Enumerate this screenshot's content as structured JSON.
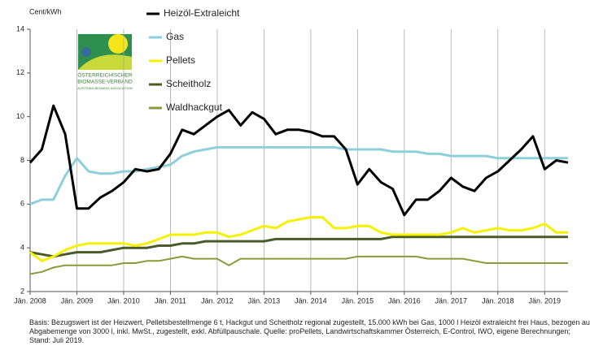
{
  "chart_data": {
    "type": "line",
    "y_label": "Cent/kWh",
    "categories": [
      "Jän. 2008",
      null,
      null,
      null,
      "Jän. 2009",
      null,
      null,
      null,
      "Jän. 2010",
      null,
      null,
      null,
      "Jän. 2011",
      null,
      null,
      null,
      "Jän. 2012",
      null,
      null,
      null,
      "Jän. 2013",
      null,
      null,
      null,
      "Jän. 2014",
      null,
      null,
      null,
      "Jän. 2015",
      null,
      null,
      null,
      "Jän. 2016",
      null,
      null,
      null,
      "Jän. 2017",
      null,
      null,
      null,
      "Jän. 2018",
      null,
      null,
      null,
      "Jän. 2019",
      null,
      null
    ],
    "ylim": [
      2,
      14
    ],
    "yticks": [
      2,
      4,
      6,
      8,
      10,
      12,
      14
    ],
    "grid": "x",
    "series": [
      {
        "name": "Heizöl-Extraleicht",
        "color": "#000000",
        "values": [
          7.9,
          8.5,
          10.5,
          9.2,
          5.8,
          5.8,
          6.3,
          6.6,
          7.0,
          7.6,
          7.5,
          7.6,
          8.3,
          9.4,
          9.2,
          9.6,
          10.0,
          10.3,
          9.6,
          10.2,
          9.9,
          9.2,
          9.4,
          9.4,
          9.3,
          9.1,
          9.1,
          8.5,
          6.9,
          7.6,
          7.0,
          6.7,
          5.5,
          6.2,
          6.2,
          6.6,
          7.2,
          6.8,
          6.6,
          7.2,
          7.5,
          8.0,
          8.5,
          9.1,
          7.6,
          8.0,
          7.9
        ]
      },
      {
        "name": "Gas",
        "color": "#8ecfdc",
        "values": [
          6.0,
          6.2,
          6.2,
          7.3,
          8.1,
          7.5,
          7.4,
          7.4,
          7.5,
          7.5,
          7.6,
          7.7,
          7.8,
          8.2,
          8.4,
          8.5,
          8.6,
          8.6,
          8.6,
          8.6,
          8.6,
          8.6,
          8.6,
          8.6,
          8.6,
          8.6,
          8.6,
          8.5,
          8.5,
          8.5,
          8.5,
          8.4,
          8.4,
          8.4,
          8.3,
          8.3,
          8.2,
          8.2,
          8.2,
          8.2,
          8.1,
          8.1,
          8.1,
          8.1,
          8.1,
          8.1,
          8.1
        ]
      },
      {
        "name": "Pellets",
        "color": "#f5f200",
        "values": [
          3.8,
          3.4,
          3.6,
          3.9,
          4.1,
          4.2,
          4.2,
          4.2,
          4.2,
          4.1,
          4.2,
          4.4,
          4.6,
          4.6,
          4.6,
          4.7,
          4.7,
          4.5,
          4.6,
          4.8,
          5.0,
          4.9,
          5.2,
          5.3,
          5.4,
          5.4,
          4.9,
          4.9,
          5.0,
          5.0,
          4.7,
          4.6,
          4.6,
          4.6,
          4.6,
          4.6,
          4.7,
          4.9,
          4.7,
          4.8,
          4.9,
          4.8,
          4.8,
          4.9,
          5.1,
          4.7,
          4.7
        ]
      },
      {
        "name": "Scheitholz",
        "color": "#4a5a2a",
        "values": [
          3.8,
          3.7,
          3.6,
          3.7,
          3.8,
          3.8,
          3.8,
          3.9,
          4.0,
          4.0,
          4.0,
          4.1,
          4.1,
          4.2,
          4.2,
          4.3,
          4.3,
          4.3,
          4.3,
          4.3,
          4.3,
          4.4,
          4.4,
          4.4,
          4.4,
          4.4,
          4.4,
          4.4,
          4.4,
          4.4,
          4.4,
          4.5,
          4.5,
          4.5,
          4.5,
          4.5,
          4.5,
          4.5,
          4.5,
          4.5,
          4.5,
          4.5,
          4.5,
          4.5,
          4.5,
          4.5,
          4.5
        ]
      },
      {
        "name": "Waldhackgut",
        "color": "#8a9a3a",
        "values": [
          2.8,
          2.9,
          3.1,
          3.2,
          3.2,
          3.2,
          3.2,
          3.2,
          3.3,
          3.3,
          3.4,
          3.4,
          3.5,
          3.6,
          3.5,
          3.5,
          3.5,
          3.2,
          3.5,
          3.5,
          3.5,
          3.5,
          3.5,
          3.5,
          3.5,
          3.5,
          3.5,
          3.5,
          3.6,
          3.6,
          3.6,
          3.6,
          3.6,
          3.6,
          3.5,
          3.5,
          3.5,
          3.5,
          3.4,
          3.3,
          3.3,
          3.3,
          3.3,
          3.3,
          3.3,
          3.3,
          3.3
        ]
      }
    ]
  },
  "logo": {
    "line1": "ÖSTERREICHISCHER",
    "line2": "BIOMASSE-VERBAND",
    "line3": "AUSTRIAN BIOMASS ASSOCIATION"
  },
  "footnote": [
    "Basis: Bezugswert ist der Heizwert, Pelletsbestellmenge  6 t, Hackgut und Scheitholz regional zugestellt, 15.000 kWh bei Gas, 1000 l Heizöl extraleicht frei Haus, bezogen  auf eine",
    "Abgabemenge von 3000 l, inkl. MwSt., zugestellt, exkl. Abfüllpauschale. Quelle: proPellets, Landwirtschaftskammer Österreich, E-Control, IWO, eigene Berechnungen;",
    "Stand: Juli 2019."
  ]
}
